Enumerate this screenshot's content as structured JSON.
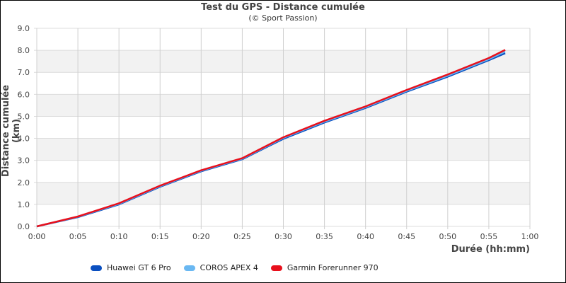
{
  "chart_data": {
    "type": "line",
    "title": "Test du GPS - Distance cumulée",
    "subtitle": "(© Sport Passion)",
    "xlabel": "Durée (hh:mm)",
    "ylabel": "Distance cumulée (km)",
    "xlim": [
      0,
      60
    ],
    "ylim": [
      0,
      9
    ],
    "x_ticks": [
      "0:00",
      "0:05",
      "0:10",
      "0:15",
      "0:20",
      "0:25",
      "0:30",
      "0:35",
      "0:40",
      "0:45",
      "0:50",
      "0:55",
      "1:00"
    ],
    "y_ticks": [
      "0.0",
      "1.0",
      "2.0",
      "3.0",
      "4.0",
      "5.0",
      "6.0",
      "7.0",
      "8.0",
      "9.0"
    ],
    "grid": true,
    "legend_position": "bottom",
    "x": [
      0,
      5,
      10,
      15,
      20,
      25,
      30,
      35,
      40,
      45,
      50,
      55,
      57
    ],
    "series": [
      {
        "name": "Huawei GT 6 Pro",
        "color": "#0a4fc0",
        "values": [
          0,
          0.42,
          1.0,
          1.8,
          2.5,
          3.05,
          3.98,
          4.72,
          5.38,
          6.12,
          6.8,
          7.55,
          7.87
        ]
      },
      {
        "name": "COROS APEX 4",
        "color": "#6ab8f2",
        "values": [
          0,
          0.44,
          1.03,
          1.83,
          2.53,
          3.08,
          4.02,
          4.76,
          5.42,
          6.16,
          6.85,
          7.6,
          7.95
        ]
      },
      {
        "name": "Garmin Forerunner 970",
        "color": "#e8101c",
        "values": [
          0,
          0.45,
          1.05,
          1.85,
          2.55,
          3.1,
          4.05,
          4.8,
          5.45,
          6.2,
          6.9,
          7.65,
          8.02
        ]
      }
    ]
  },
  "legend": {
    "items": [
      {
        "label": "Huawei GT 6 Pro",
        "color": "#0a4fc0"
      },
      {
        "label": "COROS APEX 4",
        "color": "#6ab8f2"
      },
      {
        "label": "Garmin Forerunner 970",
        "color": "#e8101c"
      }
    ]
  }
}
